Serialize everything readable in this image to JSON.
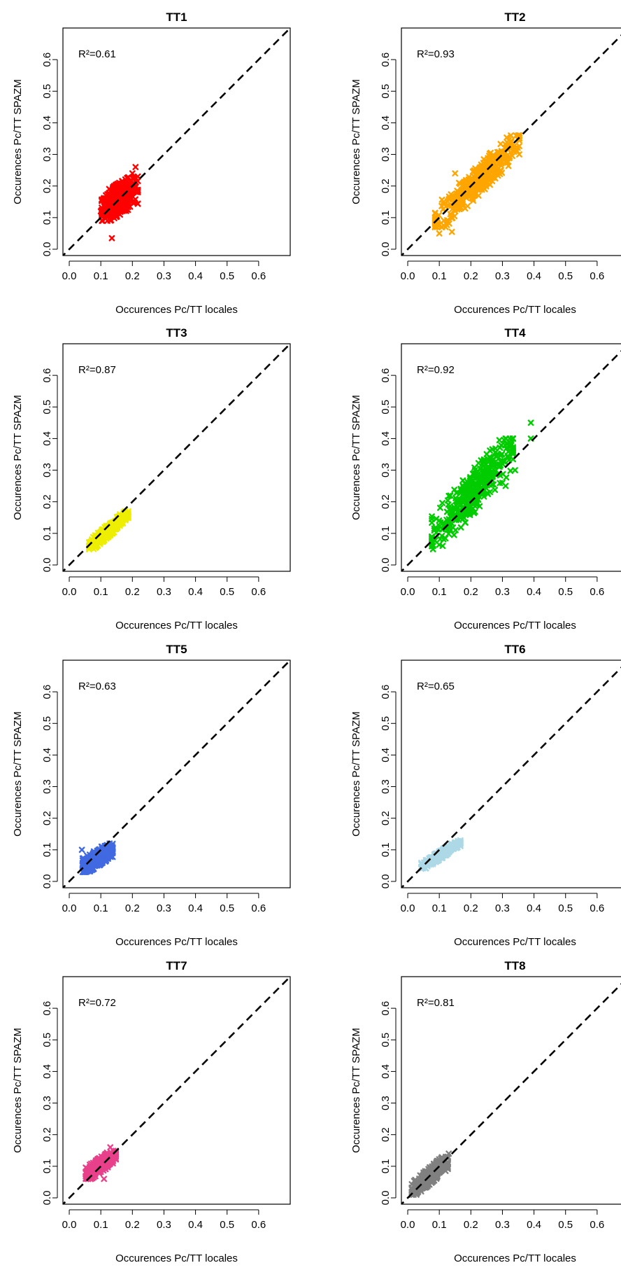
{
  "chart_data": [
    {
      "type": "scatter",
      "title": "TT1",
      "r2_label": "R²=0.61",
      "xlabel": "Occurences Pc/TT locales",
      "ylabel": "Occurences Pc/TT SPAZM",
      "xlim": [
        -0.02,
        0.7
      ],
      "ylim": [
        -0.02,
        0.7
      ],
      "x_ticks": [
        0.0,
        0.1,
        0.2,
        0.3,
        0.4,
        0.5,
        0.6
      ],
      "y_ticks": [
        0.0,
        0.1,
        0.2,
        0.3,
        0.4,
        0.5,
        0.6
      ],
      "reference_line": "y = x",
      "color": "#ff0000",
      "marker": "x",
      "cluster": {
        "x_range": [
          0.1,
          0.22
        ],
        "y_range": [
          0.09,
          0.23
        ],
        "slope": 0.61
      },
      "outliers": [
        [
          0.21,
          0.26
        ],
        [
          0.135,
          0.035
        ],
        [
          0.1,
          0.12
        ],
        [
          0.2,
          0.24
        ]
      ]
    },
    {
      "type": "scatter",
      "title": "TT2",
      "r2_label": "R²=0.93",
      "xlabel": "Occurences Pc/TT locales",
      "ylabel": "Occurences Pc/TT SPAZM",
      "xlim": [
        -0.02,
        0.7
      ],
      "ylim": [
        -0.02,
        0.7
      ],
      "x_ticks": [
        0.0,
        0.1,
        0.2,
        0.3,
        0.4,
        0.5,
        0.6
      ],
      "y_ticks": [
        0.0,
        0.1,
        0.2,
        0.3,
        0.4,
        0.5,
        0.6
      ],
      "reference_line": "y = x",
      "color": "#ffa500",
      "marker": "x",
      "cluster": {
        "x_range": [
          0.08,
          0.36
        ],
        "y_range": [
          0.07,
          0.36
        ],
        "slope": 0.95
      },
      "outliers": [
        [
          0.1,
          0.05
        ],
        [
          0.14,
          0.055
        ],
        [
          0.15,
          0.24
        ],
        [
          0.35,
          0.36
        ],
        [
          0.12,
          0.07
        ]
      ]
    },
    {
      "type": "scatter",
      "title": "TT3",
      "r2_label": "R²=0.87",
      "xlabel": "Occurences Pc/TT locales",
      "ylabel": "Occurences Pc/TT SPAZM",
      "xlim": [
        -0.02,
        0.7
      ],
      "ylim": [
        -0.02,
        0.7
      ],
      "x_ticks": [
        0.0,
        0.1,
        0.2,
        0.3,
        0.4,
        0.5,
        0.6
      ],
      "y_ticks": [
        0.0,
        0.1,
        0.2,
        0.3,
        0.4,
        0.5,
        0.6
      ],
      "reference_line": "y = x",
      "color": "#eeee00",
      "marker": "x",
      "cluster": {
        "x_range": [
          0.06,
          0.19
        ],
        "y_range": [
          0.05,
          0.17
        ],
        "slope": 0.85
      },
      "outliers": []
    },
    {
      "type": "scatter",
      "title": "TT4",
      "r2_label": "R²=0.92",
      "xlabel": "Occurences Pc/TT locales",
      "ylabel": "Occurences Pc/TT SPAZM",
      "xlim": [
        -0.02,
        0.7
      ],
      "ylim": [
        -0.02,
        0.7
      ],
      "x_ticks": [
        0.0,
        0.1,
        0.2,
        0.3,
        0.4,
        0.5,
        0.6
      ],
      "y_ticks": [
        0.0,
        0.1,
        0.2,
        0.3,
        0.4,
        0.5,
        0.6
      ],
      "reference_line": "y = x",
      "color": "#00cc00",
      "marker": "x",
      "cluster": {
        "x_range": [
          0.07,
          0.34
        ],
        "y_range": [
          0.06,
          0.4
        ],
        "slope": 1.1
      },
      "outliers": [
        [
          0.39,
          0.45
        ],
        [
          0.39,
          0.4
        ],
        [
          0.3,
          0.26
        ],
        [
          0.31,
          0.25
        ],
        [
          0.34,
          0.3
        ],
        [
          0.08,
          0.05
        ]
      ]
    },
    {
      "type": "scatter",
      "title": "TT5",
      "r2_label": "R²=0.63",
      "xlabel": "Occurences Pc/TT locales",
      "ylabel": "Occurences Pc/TT SPAZM",
      "xlim": [
        -0.02,
        0.7
      ],
      "ylim": [
        -0.02,
        0.7
      ],
      "x_ticks": [
        0.0,
        0.1,
        0.2,
        0.3,
        0.4,
        0.5,
        0.6
      ],
      "y_ticks": [
        0.0,
        0.1,
        0.2,
        0.3,
        0.4,
        0.5,
        0.6
      ],
      "reference_line": "y = x",
      "color": "#4169e1",
      "marker": "x",
      "cluster": {
        "x_range": [
          0.04,
          0.14
        ],
        "y_range": [
          0.03,
          0.12
        ],
        "slope": 0.63
      },
      "outliers": [
        [
          0.04,
          0.1
        ]
      ]
    },
    {
      "type": "scatter",
      "title": "TT6",
      "r2_label": "R²=0.65",
      "xlabel": "Occurences Pc/TT locales",
      "ylabel": "Occurences Pc/TT SPAZM",
      "xlim": [
        -0.02,
        0.7
      ],
      "ylim": [
        -0.02,
        0.7
      ],
      "x_ticks": [
        0.0,
        0.1,
        0.2,
        0.3,
        0.4,
        0.5,
        0.6
      ],
      "y_ticks": [
        0.0,
        0.1,
        0.2,
        0.3,
        0.4,
        0.5,
        0.6
      ],
      "reference_line": "y = x",
      "color": "#add8e6",
      "marker": "x",
      "cluster": {
        "x_range": [
          0.04,
          0.17
        ],
        "y_range": [
          0.04,
          0.13
        ],
        "slope": 0.65
      },
      "outliers": []
    },
    {
      "type": "scatter",
      "title": "TT7",
      "r2_label": "R²=0.72",
      "xlabel": "Occurences Pc/TT locales",
      "ylabel": "Occurences Pc/TT SPAZM",
      "xlim": [
        -0.02,
        0.7
      ],
      "ylim": [
        -0.02,
        0.7
      ],
      "x_ticks": [
        0.0,
        0.1,
        0.2,
        0.3,
        0.4,
        0.5,
        0.6
      ],
      "y_ticks": [
        0.0,
        0.1,
        0.2,
        0.3,
        0.4,
        0.5,
        0.6
      ],
      "reference_line": "y = x",
      "color": "#e8408a",
      "marker": "x",
      "cluster": {
        "x_range": [
          0.05,
          0.15
        ],
        "y_range": [
          0.06,
          0.15
        ],
        "slope": 0.7
      },
      "outliers": [
        [
          0.11,
          0.06
        ],
        [
          0.13,
          0.16
        ]
      ]
    },
    {
      "type": "scatter",
      "title": "TT8",
      "r2_label": "R²=0.81",
      "xlabel": "Occurences Pc/TT locales",
      "ylabel": "Occurences Pc/TT SPAZM",
      "xlim": [
        -0.02,
        0.7
      ],
      "ylim": [
        -0.02,
        0.7
      ],
      "x_ticks": [
        0.0,
        0.1,
        0.2,
        0.3,
        0.4,
        0.5,
        0.6
      ],
      "y_ticks": [
        0.0,
        0.1,
        0.2,
        0.3,
        0.4,
        0.5,
        0.6
      ],
      "reference_line": "y = x",
      "color": "#808080",
      "marker": "x",
      "cluster": {
        "x_range": [
          0.01,
          0.13
        ],
        "y_range": [
          0.01,
          0.13
        ],
        "slope": 0.85
      },
      "outliers": [
        [
          0.13,
          0.14
        ]
      ]
    }
  ]
}
